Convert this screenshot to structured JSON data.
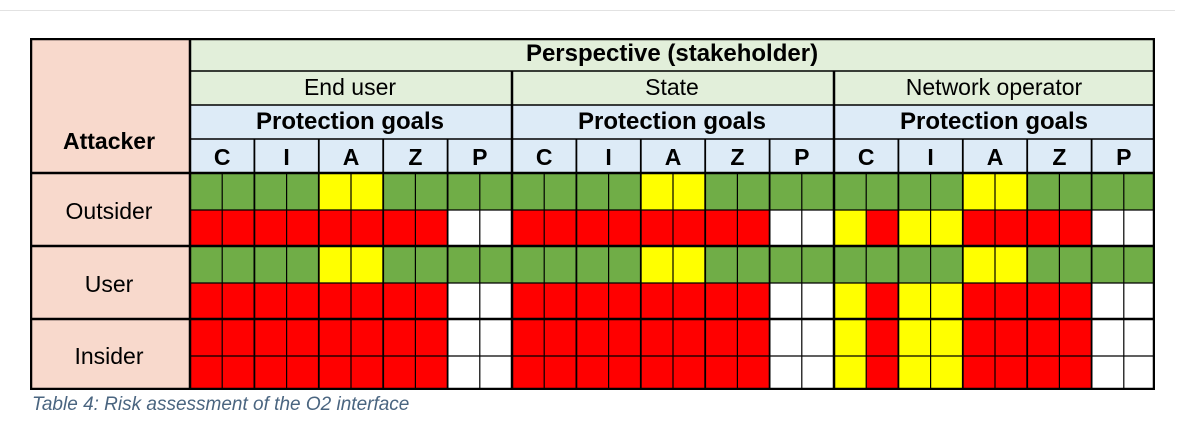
{
  "table": {
    "row_header": "Attacker",
    "perspective_header": "Perspective (stakeholder)",
    "stakeholders": [
      {
        "name": "End user",
        "goals_header": "Protection goals"
      },
      {
        "name": "State",
        "goals_header": "Protection goals"
      },
      {
        "name": "Network operator",
        "goals_header": "Protection goals"
      }
    ],
    "goals": [
      "C",
      "I",
      "A",
      "Z",
      "P"
    ],
    "attackers": [
      "Outsider",
      "User",
      "Insider"
    ],
    "colors": {
      "header_green": "#e2efda",
      "header_blue": "#ddebf7",
      "attacker_pink": "#f8d9cc",
      "G": "#70ad47",
      "Y": "#ffff00",
      "R": "#ff0000",
      "W": "#ffffff"
    },
    "legend_note": "G = green, Y = yellow, R = red, W = white",
    "cells": [
      [
        "GGGGYYGGGG",
        "GGGGYYGGGG",
        "GGGGYYGGGG"
      ],
      [
        "RRRRRRRRWW",
        "RRRRRRRRWW",
        "YRYYRRRRWW"
      ],
      [
        "GGGGYYGGGG",
        "GGGGYYGGGG",
        "GGGGYYGGGG"
      ],
      [
        "RRRRRRRRWW",
        "RRRRRRRRWW",
        "YRYYRRRRWW"
      ],
      [
        "RRRRRRRRWW",
        "RRRRRRRRWW",
        "YRYYRRRRWW"
      ],
      [
        "RRRRRRRRWW",
        "RRRRRRRRWW",
        "YRYYRRRRWW"
      ]
    ]
  },
  "caption": "Table 4: Risk assessment of the O2 interface"
}
